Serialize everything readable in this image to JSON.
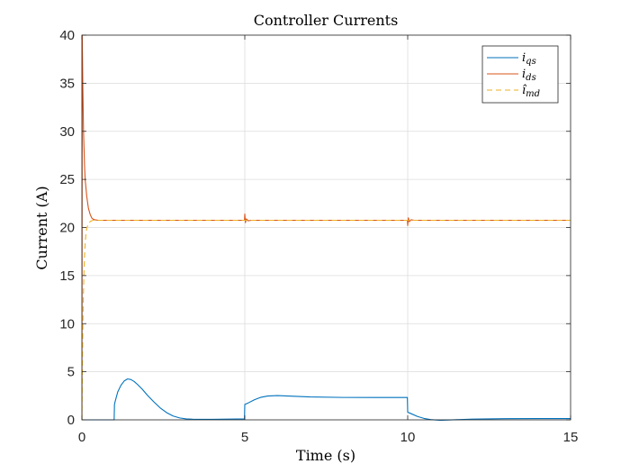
{
  "chart_data": {
    "type": "line",
    "title": "Controller Currents",
    "xlabel": "Time (s)",
    "ylabel": "Current (A)",
    "xlim": [
      0,
      15
    ],
    "ylim": [
      0,
      40
    ],
    "xticks": [
      0,
      5,
      10,
      15
    ],
    "yticks": [
      0,
      5,
      10,
      15,
      20,
      25,
      30,
      35,
      40
    ],
    "grid": true,
    "legend_position": "top-right",
    "series": [
      {
        "name": "i",
        "name_sub": "qs",
        "color": "#0072BD",
        "style": "solid",
        "x": [
          0,
          0.99,
          1.0,
          1.02,
          1.1,
          1.2,
          1.3,
          1.4,
          1.5,
          1.6,
          1.7,
          1.85,
          2.0,
          2.2,
          2.4,
          2.6,
          2.8,
          3.0,
          3.2,
          3.4,
          3.6,
          4.0,
          4.5,
          4.99,
          5.0,
          5.1,
          5.3,
          5.5,
          5.7,
          6.0,
          6.5,
          7.0,
          8.0,
          9.0,
          9.99,
          10.0,
          10.1,
          10.3,
          10.5,
          10.7,
          11.0,
          11.5,
          12.0,
          13.0,
          14.0,
          15.0
        ],
        "y": [
          0,
          0,
          1.6,
          1.9,
          2.9,
          3.6,
          4.05,
          4.25,
          4.2,
          4.0,
          3.7,
          3.2,
          2.6,
          1.9,
          1.25,
          0.75,
          0.4,
          0.2,
          0.1,
          0.06,
          0.05,
          0.05,
          0.08,
          0.1,
          1.6,
          1.75,
          2.1,
          2.35,
          2.48,
          2.52,
          2.45,
          2.38,
          2.33,
          2.32,
          2.32,
          0.8,
          0.65,
          0.35,
          0.15,
          0.03,
          -0.05,
          0.02,
          0.08,
          0.12,
          0.13,
          0.13
        ]
      },
      {
        "name": "i",
        "name_sub": "ds",
        "color": "#D95319",
        "style": "solid",
        "x": [
          0,
          0.01,
          0.03,
          0.05,
          0.08,
          0.1,
          0.15,
          0.2,
          0.25,
          0.3,
          0.35,
          0.4,
          0.5,
          0.6,
          0.8,
          1.0,
          4.99,
          5.0,
          5.02,
          5.05,
          5.1,
          5.2,
          9.99,
          10.0,
          10.02,
          10.05,
          10.1,
          10.2,
          15.0
        ],
        "y": [
          0,
          40,
          34.5,
          30.0,
          26.5,
          25.0,
          23.2,
          22.0,
          21.4,
          21.0,
          20.85,
          20.8,
          20.75,
          20.75,
          20.75,
          20.75,
          20.75,
          21.4,
          20.5,
          20.9,
          20.7,
          20.75,
          20.75,
          20.2,
          21.0,
          20.6,
          20.8,
          20.75,
          20.75
        ]
      },
      {
        "name": "î",
        "name_sub": "md",
        "color": "#EDB120",
        "style": "dashed",
        "x": [
          0,
          0.02,
          0.04,
          0.06,
          0.08,
          0.1,
          0.12,
          0.15,
          0.2,
          0.25,
          0.3,
          0.35,
          0.4,
          0.5,
          15.0
        ],
        "y": [
          0,
          7.0,
          12.0,
          15.0,
          17.0,
          18.3,
          19.2,
          19.9,
          20.4,
          20.6,
          20.7,
          20.75,
          20.75,
          20.75,
          20.75
        ]
      }
    ]
  }
}
